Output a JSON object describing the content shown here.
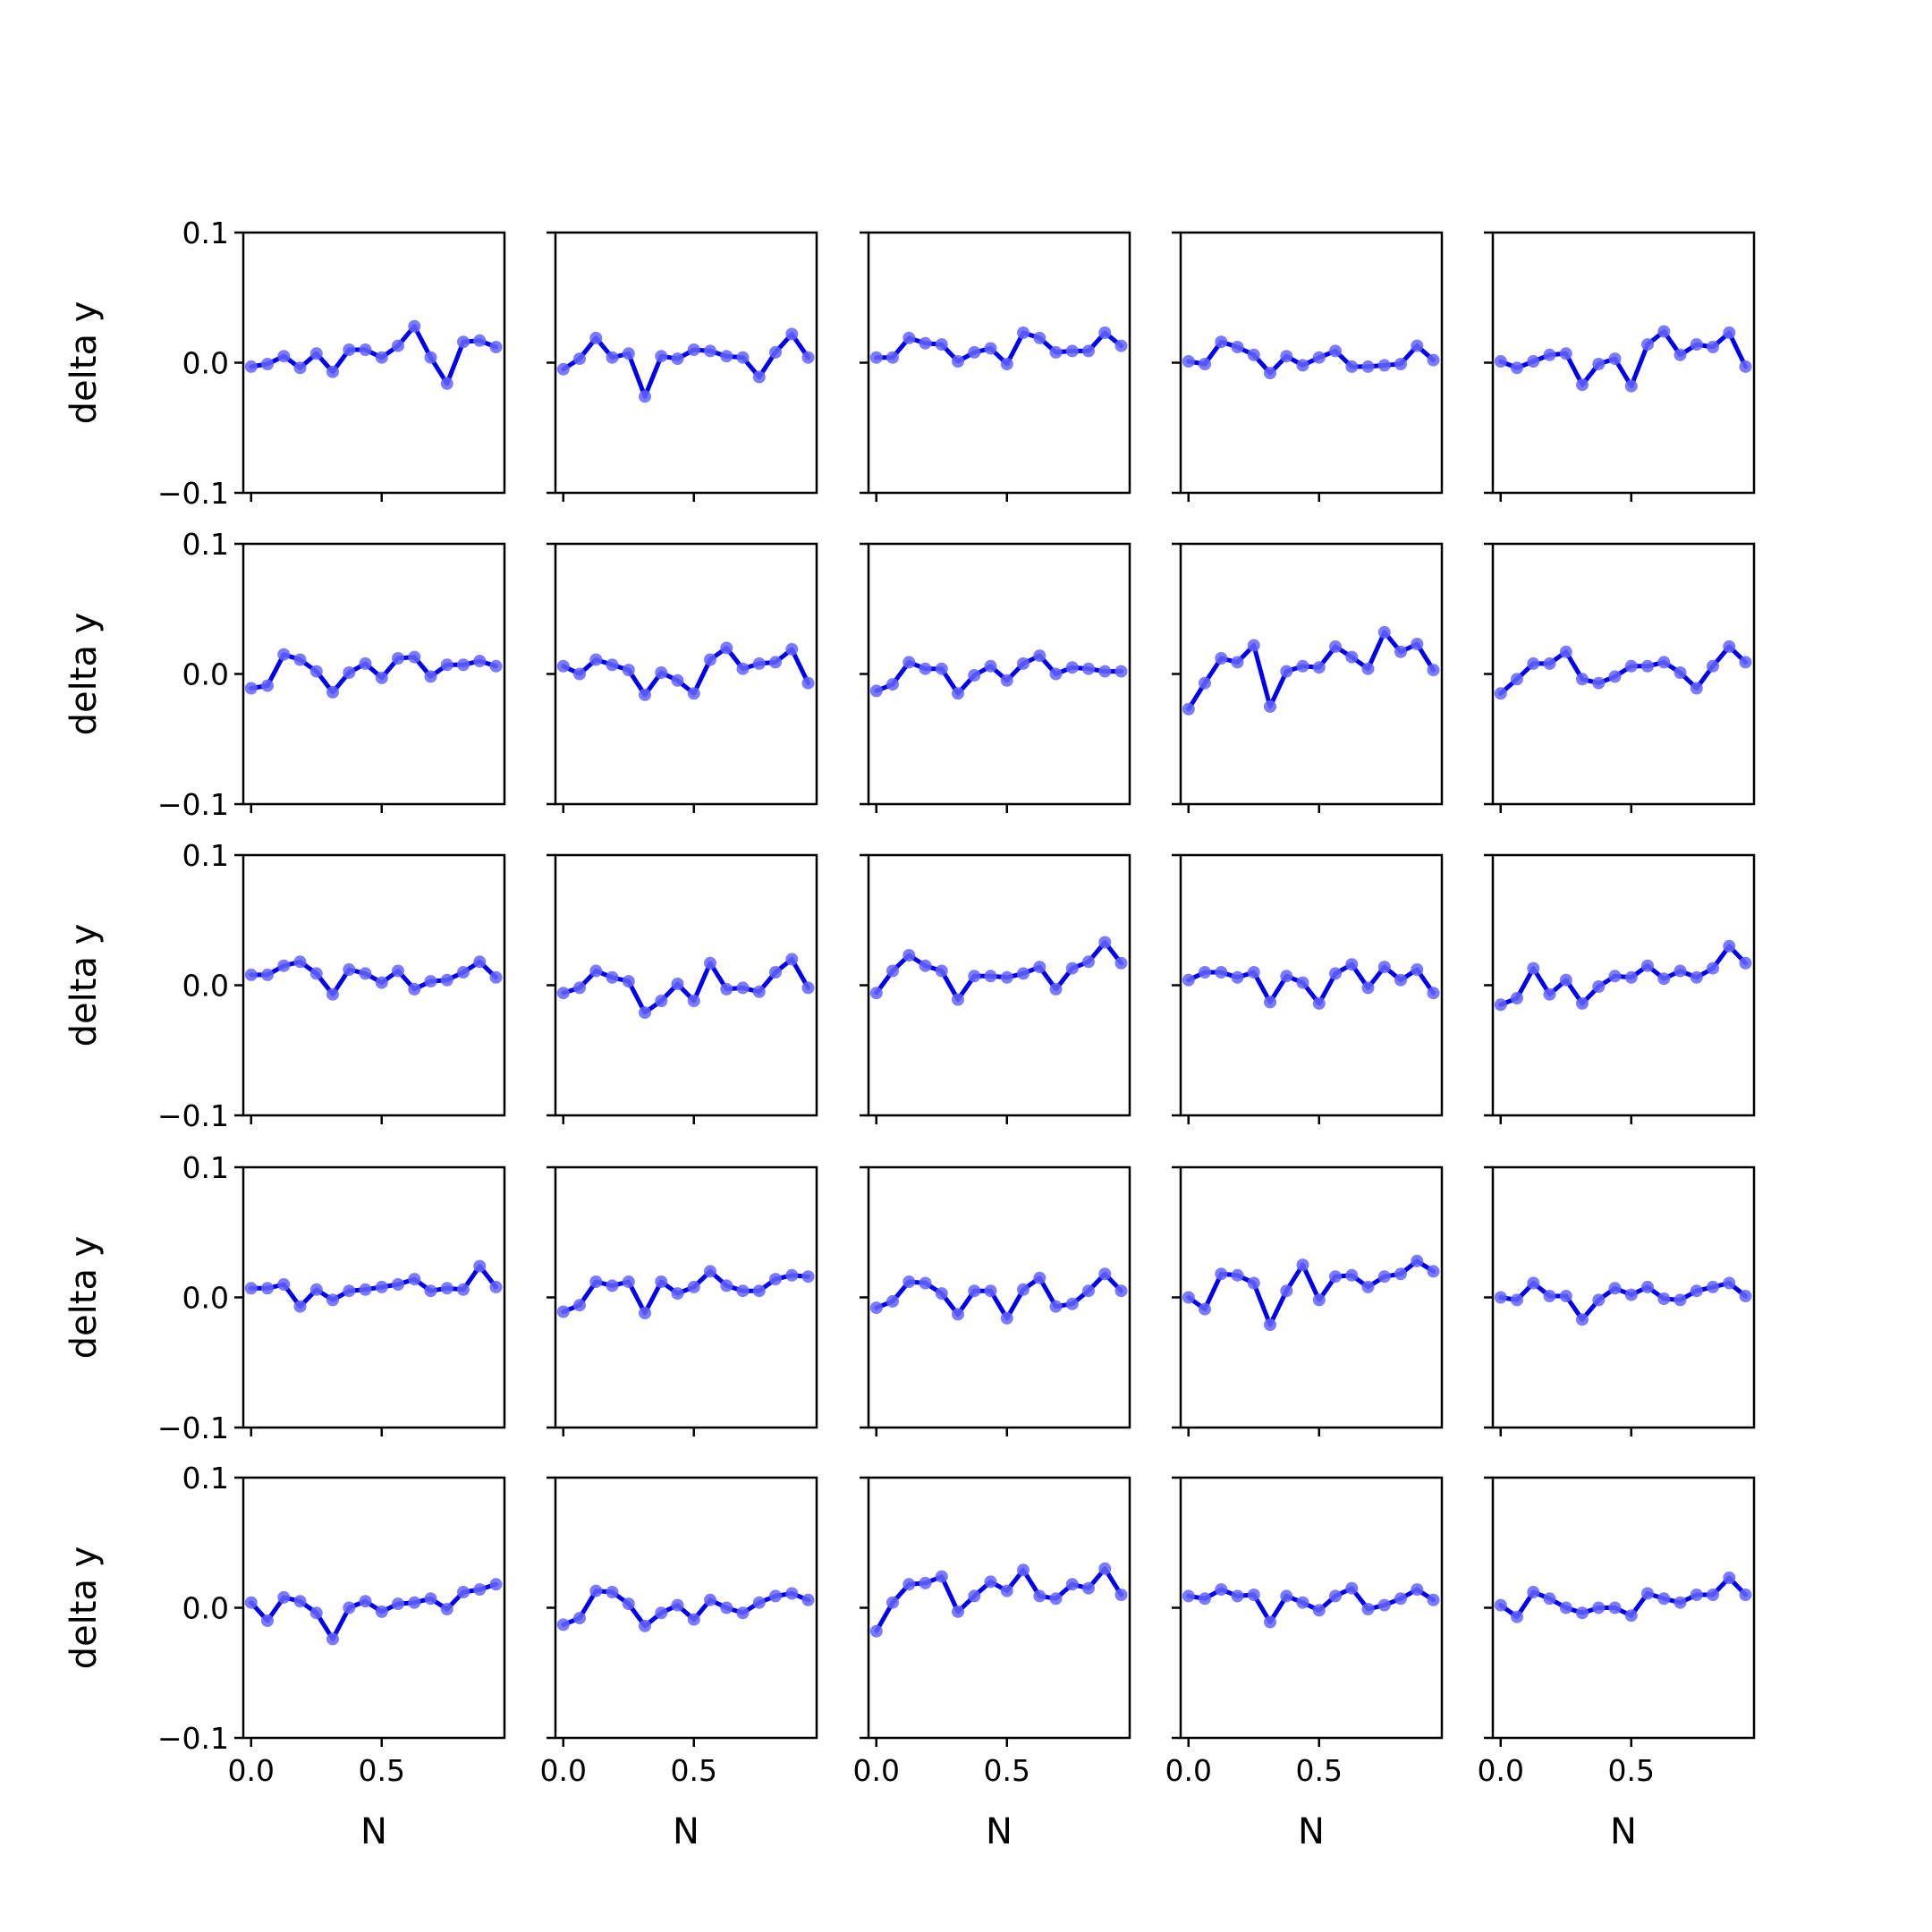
{
  "chart_data": {
    "type": "line",
    "layout": "grid 5x5 (shared x and y axes)",
    "xlabel": "N",
    "ylabel": "delta y",
    "xlim": [
      -0.03,
      0.97
    ],
    "ylim": [
      -0.1,
      0.1
    ],
    "xticks": [
      0.0,
      0.5
    ],
    "xtick_labels": [
      "0.0",
      "0.5"
    ],
    "yticks": [
      -0.1,
      0.0,
      0.1
    ],
    "ytick_labels": [
      "−0.1",
      "0.0",
      "0.1"
    ],
    "grid": false,
    "legend": "none",
    "colors": {
      "line": "#0000ee",
      "marker": "#6464ff",
      "axes": "#000000"
    },
    "x": [
      0.0,
      0.0625,
      0.125,
      0.1875,
      0.25,
      0.3125,
      0.375,
      0.4375,
      0.5,
      0.5625,
      0.625,
      0.6875,
      0.75,
      0.8125,
      0.875,
      0.9375
    ],
    "panels": [
      {
        "row": 1,
        "col": 1,
        "y": [
          -0.003,
          -0.001,
          0.005,
          -0.004,
          0.007,
          -0.007,
          0.01,
          0.01,
          0.004,
          0.013,
          0.028,
          0.004,
          -0.016,
          0.016,
          0.017,
          0.012
        ]
      },
      {
        "row": 1,
        "col": 2,
        "y": [
          -0.005,
          0.003,
          0.019,
          0.004,
          0.007,
          -0.026,
          0.005,
          0.003,
          0.01,
          0.009,
          0.005,
          0.004,
          -0.011,
          0.008,
          0.022,
          0.004
        ]
      },
      {
        "row": 1,
        "col": 3,
        "y": [
          0.004,
          0.004,
          0.019,
          0.015,
          0.014,
          0.001,
          0.008,
          0.011,
          -0.001,
          0.023,
          0.019,
          0.008,
          0.009,
          0.009,
          0.023,
          0.013
        ]
      },
      {
        "row": 1,
        "col": 4,
        "y": [
          0.001,
          -0.001,
          0.016,
          0.012,
          0.006,
          -0.008,
          0.005,
          -0.002,
          0.004,
          0.009,
          -0.003,
          -0.003,
          -0.002,
          -0.001,
          0.013,
          0.002
        ]
      },
      {
        "row": 1,
        "col": 5,
        "y": [
          0.001,
          -0.004,
          0.001,
          0.006,
          0.007,
          -0.017,
          -0.001,
          0.003,
          -0.018,
          0.014,
          0.024,
          0.006,
          0.014,
          0.012,
          0.023,
          -0.003
        ]
      },
      {
        "row": 2,
        "col": 1,
        "y": [
          -0.011,
          -0.009,
          0.015,
          0.011,
          0.002,
          -0.014,
          0.001,
          0.008,
          -0.003,
          0.012,
          0.013,
          -0.002,
          0.007,
          0.007,
          0.01,
          0.006
        ]
      },
      {
        "row": 2,
        "col": 2,
        "y": [
          0.006,
          0.0,
          0.011,
          0.007,
          0.003,
          -0.016,
          0.001,
          -0.005,
          -0.015,
          0.011,
          0.02,
          0.004,
          0.008,
          0.009,
          0.019,
          -0.007
        ]
      },
      {
        "row": 2,
        "col": 3,
        "y": [
          -0.013,
          -0.008,
          0.009,
          0.004,
          0.004,
          -0.015,
          -0.001,
          0.006,
          -0.005,
          0.008,
          0.014,
          0.0,
          0.005,
          0.004,
          0.002,
          0.002
        ]
      },
      {
        "row": 2,
        "col": 4,
        "y": [
          -0.027,
          -0.007,
          0.012,
          0.009,
          0.022,
          -0.025,
          0.002,
          0.006,
          0.005,
          0.021,
          0.013,
          0.004,
          0.032,
          0.017,
          0.023,
          0.003
        ]
      },
      {
        "row": 2,
        "col": 5,
        "y": [
          -0.015,
          -0.004,
          0.008,
          0.008,
          0.017,
          -0.004,
          -0.007,
          -0.002,
          0.006,
          0.006,
          0.009,
          0.001,
          -0.011,
          0.006,
          0.021,
          0.009
        ]
      },
      {
        "row": 3,
        "col": 1,
        "y": [
          0.008,
          0.008,
          0.015,
          0.018,
          0.009,
          -0.007,
          0.012,
          0.009,
          0.002,
          0.011,
          -0.003,
          0.003,
          0.004,
          0.01,
          0.018,
          0.006
        ]
      },
      {
        "row": 3,
        "col": 2,
        "y": [
          -0.006,
          -0.002,
          0.011,
          0.006,
          0.003,
          -0.021,
          -0.012,
          0.001,
          -0.012,
          0.017,
          -0.003,
          -0.002,
          -0.005,
          0.01,
          0.02,
          -0.002
        ]
      },
      {
        "row": 3,
        "col": 3,
        "y": [
          -0.006,
          0.011,
          0.023,
          0.015,
          0.011,
          -0.011,
          0.007,
          0.007,
          0.006,
          0.009,
          0.014,
          -0.003,
          0.013,
          0.018,
          0.033,
          0.017
        ]
      },
      {
        "row": 3,
        "col": 4,
        "y": [
          0.004,
          0.01,
          0.01,
          0.006,
          0.01,
          -0.013,
          0.007,
          0.002,
          -0.014,
          0.009,
          0.016,
          -0.002,
          0.014,
          0.004,
          0.012,
          -0.006
        ]
      },
      {
        "row": 3,
        "col": 5,
        "y": [
          -0.015,
          -0.01,
          0.013,
          -0.007,
          0.004,
          -0.014,
          -0.001,
          0.007,
          0.006,
          0.015,
          0.005,
          0.011,
          0.006,
          0.013,
          0.03,
          0.017
        ]
      },
      {
        "row": 4,
        "col": 1,
        "y": [
          0.007,
          0.007,
          0.01,
          -0.007,
          0.006,
          -0.002,
          0.005,
          0.006,
          0.008,
          0.01,
          0.014,
          0.005,
          0.007,
          0.006,
          0.024,
          0.008
        ]
      },
      {
        "row": 4,
        "col": 2,
        "y": [
          -0.011,
          -0.006,
          0.012,
          0.009,
          0.012,
          -0.012,
          0.012,
          0.003,
          0.008,
          0.02,
          0.009,
          0.005,
          0.005,
          0.014,
          0.017,
          0.016
        ]
      },
      {
        "row": 4,
        "col": 3,
        "y": [
          -0.008,
          -0.003,
          0.012,
          0.011,
          0.003,
          -0.013,
          0.005,
          0.005,
          -0.016,
          0.006,
          0.015,
          -0.007,
          -0.005,
          0.005,
          0.018,
          0.005
        ]
      },
      {
        "row": 4,
        "col": 4,
        "y": [
          0.0,
          -0.009,
          0.018,
          0.017,
          0.011,
          -0.021,
          0.005,
          0.025,
          -0.002,
          0.016,
          0.017,
          0.008,
          0.016,
          0.018,
          0.028,
          0.02
        ]
      },
      {
        "row": 4,
        "col": 5,
        "y": [
          0.0,
          -0.002,
          0.011,
          0.001,
          0.001,
          -0.017,
          -0.002,
          0.007,
          0.002,
          0.008,
          -0.001,
          -0.002,
          0.005,
          0.008,
          0.011,
          0.001
        ]
      },
      {
        "row": 5,
        "col": 1,
        "y": [
          0.004,
          -0.01,
          0.008,
          0.005,
          -0.004,
          -0.024,
          0.0,
          0.005,
          -0.003,
          0.003,
          0.004,
          0.007,
          -0.001,
          0.012,
          0.014,
          0.018
        ]
      },
      {
        "row": 5,
        "col": 2,
        "y": [
          -0.013,
          -0.008,
          0.013,
          0.012,
          0.003,
          -0.014,
          -0.004,
          0.002,
          -0.009,
          0.006,
          0.0,
          -0.004,
          0.004,
          0.009,
          0.011,
          0.006
        ]
      },
      {
        "row": 5,
        "col": 3,
        "y": [
          -0.018,
          0.004,
          0.018,
          0.019,
          0.024,
          -0.003,
          0.009,
          0.02,
          0.013,
          0.029,
          0.009,
          0.007,
          0.018,
          0.015,
          0.03,
          0.01
        ]
      },
      {
        "row": 5,
        "col": 4,
        "y": [
          0.009,
          0.007,
          0.014,
          0.009,
          0.01,
          -0.011,
          0.009,
          0.004,
          -0.002,
          0.009,
          0.015,
          -0.001,
          0.002,
          0.007,
          0.014,
          0.006
        ]
      },
      {
        "row": 5,
        "col": 5,
        "y": [
          0.002,
          -0.007,
          0.012,
          0.007,
          0.0,
          -0.004,
          0.0,
          0.0,
          -0.006,
          0.011,
          0.007,
          0.004,
          0.01,
          0.01,
          0.023,
          0.01
        ]
      }
    ]
  }
}
